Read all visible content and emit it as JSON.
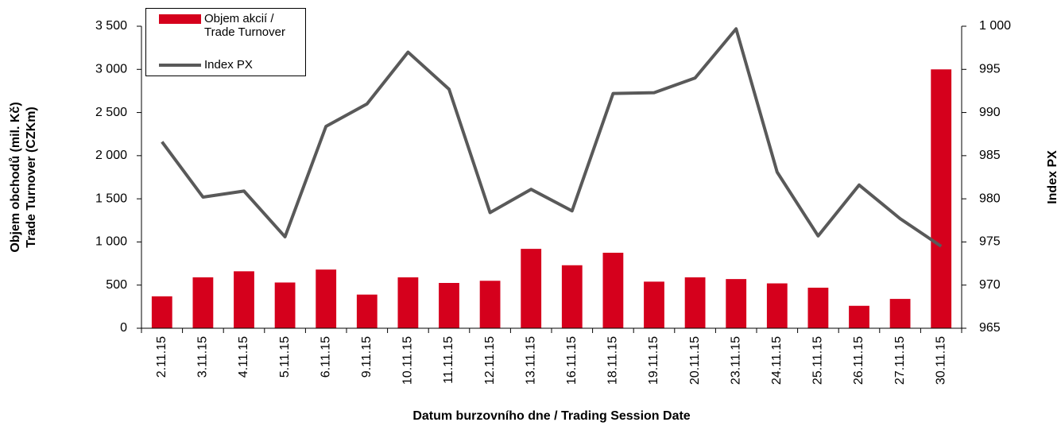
{
  "chart_data": {
    "type": "bar-line",
    "x_label": "Datum burzovního dne / Trading Session Date",
    "y_label": [
      "Objem obchodů (mil. Kč)",
      "Trade Turnover (CZKm)"
    ],
    "y2_label": "Index PX",
    "categories": [
      "2.11.15",
      "3.11.15",
      "4.11.15",
      "5.11.15",
      "6.11.15",
      "9.11.15",
      "10.11.15",
      "11.11.15",
      "12.11.15",
      "13.11.15",
      "16.11.15",
      "18.11.15",
      "19.11.15",
      "20.11.15",
      "23.11.15",
      "24.11.15",
      "25.11.15",
      "26.11.15",
      "27.11.15",
      "30.11.15"
    ],
    "series": [
      {
        "name": "Objem akcií / Trade Turnover",
        "type": "bar",
        "color": "#d5001c",
        "values": [
          370,
          590,
          660,
          530,
          680,
          390,
          590,
          525,
          550,
          920,
          730,
          875,
          540,
          590,
          570,
          520,
          470,
          260,
          340,
          3000
        ]
      },
      {
        "name": "Index PX",
        "type": "line",
        "axis": "y2",
        "color": "#595959",
        "values": [
          986.6,
          980.2,
          980.9,
          975.6,
          988.4,
          991.0,
          997.0,
          992.7,
          978.4,
          981.1,
          978.6,
          992.2,
          992.3,
          994.0,
          999.7,
          983.1,
          975.7,
          981.6,
          977.7,
          974.5
        ]
      }
    ],
    "ylim": [
      0,
      3500
    ],
    "yticks": [
      0,
      500,
      {
        "value": 1000,
        "label": "1 000"
      },
      {
        "value": 1500,
        "label": "1 500"
      },
      {
        "value": 2000,
        "label": "2 000"
      },
      {
        "value": 2500,
        "label": "2 500"
      },
      {
        "value": 3000,
        "label": "3 000"
      },
      {
        "value": 3500,
        "label": "3 500"
      }
    ],
    "y2lim": [
      965,
      1000
    ],
    "y2ticks": [
      965,
      970,
      975,
      980,
      985,
      990,
      995,
      {
        "value": 1000,
        "label": "1 000"
      }
    ],
    "legend": "top-left"
  }
}
